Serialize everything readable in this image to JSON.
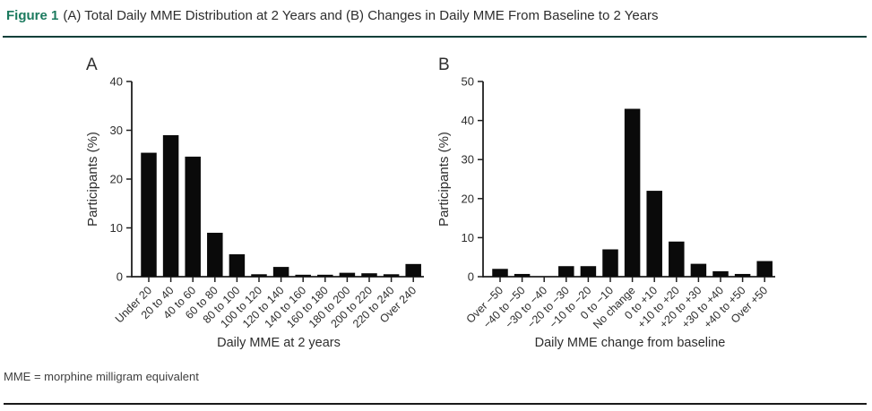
{
  "header": {
    "figure_label": "Figure 1",
    "figure_title": "(A) Total Daily MME Distribution at 2 Years and (B) Changes in Daily MME From Baseline to 2 Years"
  },
  "footer": {
    "abbreviation_note": "MME = morphine milligram equivalent"
  },
  "colors": {
    "figure_label_accent": "#1b7a5e",
    "top_rule": "#0b3f39",
    "bottom_rule": "#1a1a1a",
    "bar_fill": "#0a0a0a",
    "axis_line": "#1f1f1f",
    "text": "#2d2d2d",
    "footnote_text": "#3f3f3f"
  },
  "chart_data": [
    {
      "type": "bar",
      "panel_label": "A",
      "title": "",
      "xlabel": "Daily MME at 2 years",
      "ylabel": "Participants (%)",
      "ylim": [
        0,
        40
      ],
      "ytick_interval": 10,
      "grid": false,
      "legend": false,
      "categories": [
        "Under 20",
        "20 to 40",
        "40 to 60",
        "60 to 80",
        "80 to 100",
        "100 to 120",
        "120 to 140",
        "140 to 160",
        "160 to 180",
        "180 to 200",
        "200 to 220",
        "220 to 240",
        "Over 240"
      ],
      "values": [
        25.4,
        29,
        24.6,
        9,
        4.6,
        0.5,
        2,
        0.4,
        0.4,
        0.8,
        0.7,
        0.5,
        2.6
      ]
    },
    {
      "type": "bar",
      "panel_label": "B",
      "title": "",
      "xlabel": "Daily MME change from baseline",
      "ylabel": "Participants (%)",
      "ylim": [
        0,
        50
      ],
      "ytick_interval": 10,
      "grid": false,
      "legend": false,
      "categories": [
        "Over −50",
        "−40 to −50",
        "−30 to −40",
        "−20 to −30",
        "−10 to −20",
        "0 to −10",
        "No change",
        "0 to +10",
        "+10 to +20",
        "+20 to +30",
        "+30 to +40",
        "+40 to +50",
        "Over +50"
      ],
      "values": [
        2,
        0.7,
        0,
        2.7,
        2.7,
        7,
        43,
        22,
        9,
        3.3,
        1.4,
        0.7,
        4
      ]
    }
  ]
}
